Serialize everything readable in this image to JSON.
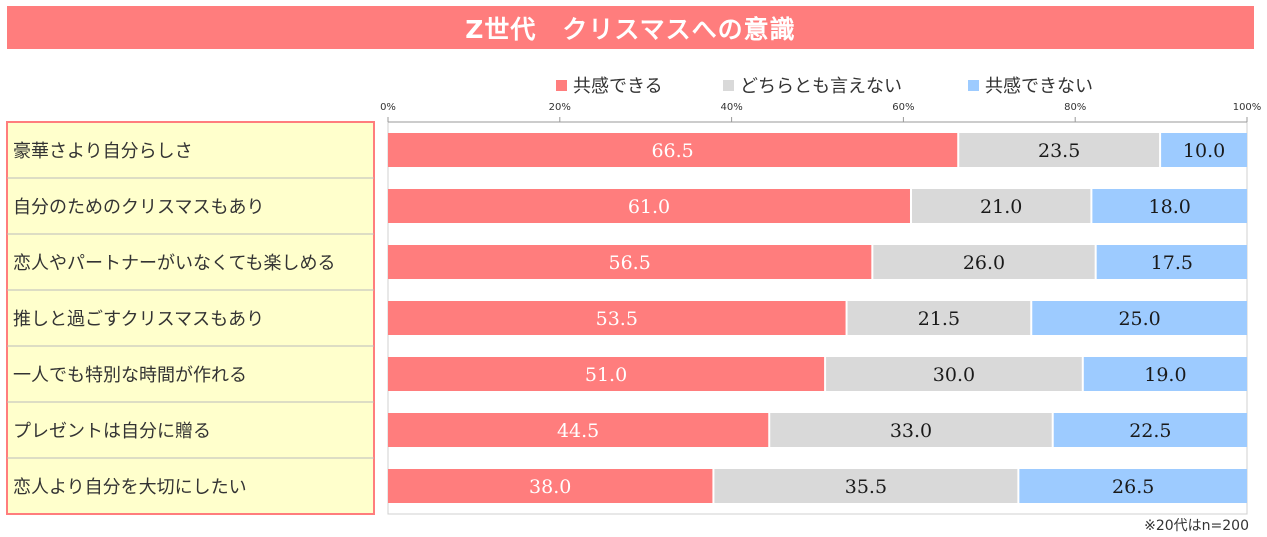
{
  "title": "Z世代　クリスマスへの意識",
  "footnote": "※20代はn=200",
  "colors": {
    "title_bg": "#ff7d7d",
    "agree": "#ff7d7d",
    "neutral": "#d9d9d9",
    "disagree": "#9dcbff",
    "label_bg": "#ffffcc",
    "label_border": "#ff7d7d",
    "value_on_agree": "#ffffff",
    "value_default": "#1a1a1a"
  },
  "chart_data": {
    "type": "bar",
    "orientation": "horizontal",
    "stacked": true,
    "title": "Z世代　クリスマスへの意識",
    "xlim": [
      0,
      100
    ],
    "x_ticks": [
      "0%",
      "20%",
      "40%",
      "60%",
      "80%",
      "100%"
    ],
    "legend_position": "top",
    "categories": [
      "豪華さより自分らしさ",
      "自分のためのクリスマスもあり",
      "恋人やパートナーがいなくても楽しめる",
      "推しと過ごすクリスマスもあり",
      "一人でも特別な時間が作れる",
      "プレゼントは自分に贈る",
      "恋人より自分を大切にしたい"
    ],
    "series": [
      {
        "name": "共感できる",
        "values": [
          "66.5",
          "61.0",
          "56.5",
          "53.5",
          "51.0",
          "44.5",
          "38.0"
        ]
      },
      {
        "name": "どちらとも言えない",
        "values": [
          "23.5",
          "21.0",
          "26.0",
          "21.5",
          "30.0",
          "33.0",
          "35.5"
        ]
      },
      {
        "name": "共感できない",
        "values": [
          "10.0",
          "18.0",
          "17.5",
          "25.0",
          "19.0",
          "22.5",
          "26.5"
        ]
      }
    ]
  }
}
